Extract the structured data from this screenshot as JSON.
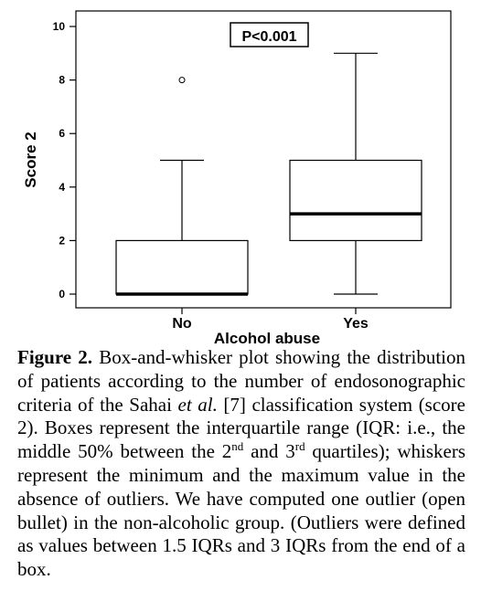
{
  "chart_data": {
    "type": "box",
    "categories": [
      "No",
      "Yes"
    ],
    "boxes": [
      {
        "category": "No",
        "min": 0,
        "q1": 0,
        "median": 0,
        "q3": 2,
        "max": 5,
        "outliers": [
          8
        ]
      },
      {
        "category": "Yes",
        "min": 0,
        "q1": 2,
        "median": 3,
        "q3": 5,
        "max": 9,
        "outliers": []
      }
    ],
    "xlabel": "Alcohol abuse",
    "ylabel": "Score 2",
    "yticks": [
      "0",
      "2",
      "4",
      "6",
      "8",
      "10"
    ],
    "ylim": [
      0,
      10
    ],
    "annotation": "P<0.001",
    "grid": false
  },
  "caption": {
    "label": "Figure 2.",
    "part1": "Box-and-whisker plot showing the distribution of patients according to the number of endosonographic criteria of the Sahai",
    "etal": "et al.",
    "part2": "[7] classification system (score 2). Boxes represent the interquartile range (IQR: i.e., the middle 50% between the",
    "second_num": "2",
    "second_sup": "nd",
    "and": "and",
    "third_num": "3",
    "third_sup": "rd",
    "part3": "quartiles); whiskers represent the minimum and the maximum value in the absence of outliers. We have computed one outlier (open bullet) in the non-alcoholic group. (Outliers were defined as values between 1.5 IQRs and 3 IQRs from the end of a box."
  }
}
